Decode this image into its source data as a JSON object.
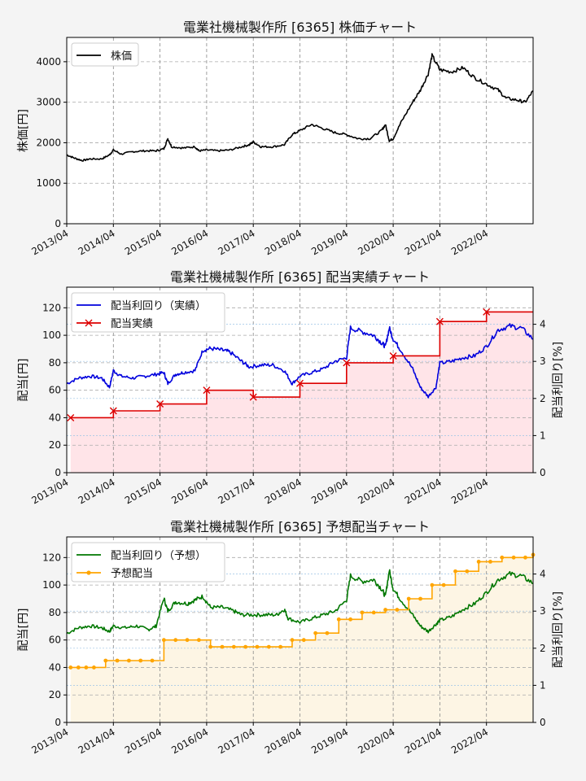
{
  "colors": {
    "price": "#000000",
    "actual_yield": "#0000dd",
    "actual_div": "#dd0000",
    "actual_fill": "#ffe4e8",
    "forecast_yield": "#007700",
    "forecast_div": "#ffa500",
    "forecast_fill": "#fdf5e4",
    "grid": "#999999",
    "background": "#f4f4f4"
  },
  "chart_data": [
    {
      "type": "line",
      "title": "電業社機械製作所 [6365]  株価チャート",
      "ylabel": "株価[円]",
      "ylim": [
        0,
        4600
      ],
      "yticks": [
        0,
        1000,
        2000,
        3000,
        4000
      ],
      "xlim": [
        "2013-04-01",
        "2023-04-01"
      ],
      "xticks": [
        "2013/04",
        "2014/04",
        "2015/04",
        "2016/04",
        "2017/04",
        "2018/04",
        "2019/04",
        "2020/04",
        "2021/04",
        "2022/04"
      ],
      "grid": true,
      "legend": {
        "position": "top-left",
        "entries": [
          "株価"
        ]
      },
      "series": [
        {
          "name": "株価",
          "color": "#000000",
          "points": [
            [
              "2013-04",
              1700
            ],
            [
              "2013-06",
              1620
            ],
            [
              "2013-08",
              1560
            ],
            [
              "2013-10",
              1600
            ],
            [
              "2014-01",
              1600
            ],
            [
              "2014-03",
              1700
            ],
            [
              "2014-04",
              1820
            ],
            [
              "2014-06",
              1720
            ],
            [
              "2014-09",
              1780
            ],
            [
              "2014-12",
              1800
            ],
            [
              "2015-03",
              1800
            ],
            [
              "2015-05",
              1850
            ],
            [
              "2015-06",
              2100
            ],
            [
              "2015-07",
              1900
            ],
            [
              "2015-10",
              1870
            ],
            [
              "2016-01",
              1900
            ],
            [
              "2016-02",
              1800
            ],
            [
              "2016-04",
              1820
            ],
            [
              "2016-07",
              1800
            ],
            [
              "2016-10",
              1820
            ],
            [
              "2017-01",
              1900
            ],
            [
              "2017-03",
              1950
            ],
            [
              "2017-04",
              2020
            ],
            [
              "2017-06",
              1900
            ],
            [
              "2017-09",
              1900
            ],
            [
              "2017-12",
              1950
            ],
            [
              "2018-02",
              2200
            ],
            [
              "2018-04",
              2300
            ],
            [
              "2018-07",
              2450
            ],
            [
              "2018-10",
              2350
            ],
            [
              "2019-01",
              2250
            ],
            [
              "2019-04",
              2200
            ],
            [
              "2019-07",
              2100
            ],
            [
              "2019-10",
              2100
            ],
            [
              "2020-01",
              2300
            ],
            [
              "2020-02",
              2450
            ],
            [
              "2020-03",
              2050
            ],
            [
              "2020-04",
              2100
            ],
            [
              "2020-06",
              2500
            ],
            [
              "2020-09",
              3000
            ],
            [
              "2020-11",
              3300
            ],
            [
              "2021-01",
              3700
            ],
            [
              "2021-02",
              4150
            ],
            [
              "2021-04",
              3800
            ],
            [
              "2021-07",
              3750
            ],
            [
              "2021-10",
              3850
            ],
            [
              "2022-01",
              3600
            ],
            [
              "2022-04",
              3450
            ],
            [
              "2022-07",
              3300
            ],
            [
              "2022-09",
              3100
            ],
            [
              "2022-12",
              3050
            ],
            [
              "2023-02",
              3000
            ],
            [
              "2023-04",
              3280
            ]
          ]
        }
      ]
    },
    {
      "type": "line",
      "title": "電業社機械製作所 [6365]  配当実績チャート",
      "ylabel": "配当[円]",
      "ylabel_right": "配当利回り[%]",
      "ylim": [
        0,
        135
      ],
      "yticks": [
        0,
        20,
        40,
        60,
        80,
        100,
        120
      ],
      "ylim_right": [
        0,
        5.0
      ],
      "yticks_right": [
        0,
        1,
        2,
        3,
        4
      ],
      "xlim": [
        "2013-04-01",
        "2023-04-01"
      ],
      "xticks": [
        "2013/04",
        "2014/04",
        "2015/04",
        "2016/04",
        "2017/04",
        "2018/04",
        "2019/04",
        "2020/04",
        "2021/04",
        "2022/04"
      ],
      "grid": true,
      "legend": {
        "position": "top-left",
        "entries": [
          "配当利回り（実績）",
          "配当実績"
        ]
      },
      "series": [
        {
          "name": "配当利回り（実績）",
          "axis": "right",
          "color": "#0000dd",
          "points": [
            [
              "2013-04",
              2.4
            ],
            [
              "2013-07",
              2.55
            ],
            [
              "2013-10",
              2.6
            ],
            [
              "2014-01",
              2.55
            ],
            [
              "2014-03",
              2.3
            ],
            [
              "2014-04",
              2.75
            ],
            [
              "2014-06",
              2.6
            ],
            [
              "2014-09",
              2.55
            ],
            [
              "2014-12",
              2.6
            ],
            [
              "2015-03",
              2.65
            ],
            [
              "2015-05",
              2.7
            ],
            [
              "2015-06",
              2.4
            ],
            [
              "2015-08",
              2.65
            ],
            [
              "2015-10",
              2.7
            ],
            [
              "2016-01",
              2.75
            ],
            [
              "2016-03",
              3.3
            ],
            [
              "2016-05",
              3.35
            ],
            [
              "2016-08",
              3.3
            ],
            [
              "2016-10",
              3.25
            ],
            [
              "2017-01",
              3.0
            ],
            [
              "2017-03",
              2.85
            ],
            [
              "2017-06",
              2.9
            ],
            [
              "2017-09",
              2.9
            ],
            [
              "2017-12",
              2.75
            ],
            [
              "2018-02",
              2.4
            ],
            [
              "2018-04",
              2.6
            ],
            [
              "2018-07",
              2.7
            ],
            [
              "2018-10",
              2.8
            ],
            [
              "2019-01",
              3.0
            ],
            [
              "2019-04",
              3.1
            ],
            [
              "2019-05",
              3.9
            ],
            [
              "2019-08",
              3.8
            ],
            [
              "2019-11",
              3.7
            ],
            [
              "2020-01",
              3.5
            ],
            [
              "2020-02",
              3.4
            ],
            [
              "2020-03",
              3.9
            ],
            [
              "2020-04",
              3.6
            ],
            [
              "2020-06",
              3.3
            ],
            [
              "2020-09",
              2.8
            ],
            [
              "2020-11",
              2.3
            ],
            [
              "2021-01",
              2.05
            ],
            [
              "2021-03",
              2.3
            ],
            [
              "2021-04",
              2.95
            ],
            [
              "2021-07",
              3.0
            ],
            [
              "2021-10",
              3.1
            ],
            [
              "2022-01",
              3.15
            ],
            [
              "2022-04",
              3.4
            ],
            [
              "2022-07",
              3.85
            ],
            [
              "2022-10",
              3.95
            ],
            [
              "2023-01",
              3.9
            ],
            [
              "2023-04",
              3.6
            ]
          ]
        },
        {
          "name": "配当実績",
          "axis": "left",
          "color": "#dd0000",
          "step": true,
          "markers": [
            [
              "2013-05",
              40
            ],
            [
              "2014-04",
              45
            ],
            [
              "2015-04",
              50
            ],
            [
              "2016-04",
              60
            ],
            [
              "2017-04",
              55
            ],
            [
              "2018-04",
              65
            ],
            [
              "2019-04",
              80
            ],
            [
              "2020-04",
              85
            ],
            [
              "2021-04",
              110
            ],
            [
              "2022-04",
              117
            ]
          ],
          "end": "2023-04"
        }
      ]
    },
    {
      "type": "line",
      "title": "電業社機械製作所 [6365]  予想配当チャート",
      "ylabel": "配当[円]",
      "ylabel_right": "配当利回り[%]",
      "ylim": [
        0,
        135
      ],
      "yticks": [
        0,
        20,
        40,
        60,
        80,
        100,
        120
      ],
      "ylim_right": [
        0,
        5.0
      ],
      "yticks_right": [
        0,
        1,
        2,
        3,
        4
      ],
      "xlim": [
        "2013-04-01",
        "2023-04-01"
      ],
      "xticks": [
        "2013/04",
        "2014/04",
        "2015/04",
        "2016/04",
        "2017/04",
        "2018/04",
        "2019/04",
        "2020/04",
        "2021/04",
        "2022/04"
      ],
      "grid": true,
      "legend": {
        "position": "top-left",
        "entries": [
          "配当利回り（予想）",
          "予想配当"
        ]
      },
      "series": [
        {
          "name": "配当利回り（予想）",
          "axis": "right",
          "color": "#007700",
          "points": [
            [
              "2013-04",
              2.4
            ],
            [
              "2013-07",
              2.55
            ],
            [
              "2013-10",
              2.6
            ],
            [
              "2014-01",
              2.55
            ],
            [
              "2014-03",
              2.45
            ],
            [
              "2014-04",
              2.6
            ],
            [
              "2014-07",
              2.55
            ],
            [
              "2014-10",
              2.6
            ],
            [
              "2015-01",
              2.5
            ],
            [
              "2015-03",
              2.6
            ],
            [
              "2015-05",
              3.35
            ],
            [
              "2015-06",
              3.0
            ],
            [
              "2015-08",
              3.25
            ],
            [
              "2015-11",
              3.2
            ],
            [
              "2016-01",
              3.3
            ],
            [
              "2016-03",
              3.4
            ],
            [
              "2016-05",
              3.1
            ],
            [
              "2016-08",
              3.1
            ],
            [
              "2016-11",
              3.0
            ],
            [
              "2017-01",
              2.9
            ],
            [
              "2017-04",
              2.9
            ],
            [
              "2017-07",
              2.9
            ],
            [
              "2017-10",
              2.9
            ],
            [
              "2017-12",
              3.05
            ],
            [
              "2018-01",
              2.8
            ],
            [
              "2018-04",
              2.7
            ],
            [
              "2018-07",
              2.8
            ],
            [
              "2018-10",
              2.9
            ],
            [
              "2019-01",
              3.0
            ],
            [
              "2019-04",
              3.3
            ],
            [
              "2019-05",
              3.95
            ],
            [
              "2019-08",
              3.8
            ],
            [
              "2019-11",
              3.85
            ],
            [
              "2020-01",
              3.6
            ],
            [
              "2020-02",
              3.4
            ],
            [
              "2020-03",
              4.1
            ],
            [
              "2020-04",
              3.6
            ],
            [
              "2020-06",
              3.3
            ],
            [
              "2020-09",
              2.9
            ],
            [
              "2020-11",
              2.6
            ],
            [
              "2021-01",
              2.45
            ],
            [
              "2021-03",
              2.65
            ],
            [
              "2021-04",
              2.75
            ],
            [
              "2021-07",
              2.85
            ],
            [
              "2021-10",
              3.05
            ],
            [
              "2022-01",
              3.2
            ],
            [
              "2022-04",
              3.5
            ],
            [
              "2022-07",
              3.85
            ],
            [
              "2022-10",
              4.0
            ],
            [
              "2023-01",
              3.95
            ],
            [
              "2023-04",
              3.75
            ]
          ]
        },
        {
          "name": "予想配当",
          "axis": "left",
          "color": "#ffa500",
          "step": true,
          "markers": [
            [
              "2013-05",
              40
            ],
            [
              "2013-07",
              40
            ],
            [
              "2013-09",
              40
            ],
            [
              "2013-11",
              40
            ],
            [
              "2014-02",
              45
            ],
            [
              "2014-05",
              45
            ],
            [
              "2014-08",
              45
            ],
            [
              "2014-11",
              45
            ],
            [
              "2015-02",
              45
            ],
            [
              "2015-05",
              60
            ],
            [
              "2015-08",
              60
            ],
            [
              "2015-11",
              60
            ],
            [
              "2016-02",
              60
            ],
            [
              "2016-05",
              55
            ],
            [
              "2016-08",
              55
            ],
            [
              "2016-11",
              55
            ],
            [
              "2017-02",
              55
            ],
            [
              "2017-05",
              55
            ],
            [
              "2017-08",
              55
            ],
            [
              "2017-11",
              55
            ],
            [
              "2018-02",
              60
            ],
            [
              "2018-05",
              60
            ],
            [
              "2018-08",
              65
            ],
            [
              "2018-11",
              65
            ],
            [
              "2019-02",
              75
            ],
            [
              "2019-05",
              75
            ],
            [
              "2019-08",
              80
            ],
            [
              "2019-11",
              80
            ],
            [
              "2020-02",
              82
            ],
            [
              "2020-05",
              82
            ],
            [
              "2020-08",
              90
            ],
            [
              "2020-11",
              90
            ],
            [
              "2021-02",
              100
            ],
            [
              "2021-05",
              100
            ],
            [
              "2021-08",
              110
            ],
            [
              "2021-11",
              110
            ],
            [
              "2022-02",
              117
            ],
            [
              "2022-05",
              117
            ],
            [
              "2022-08",
              120
            ],
            [
              "2022-11",
              120
            ],
            [
              "2023-02",
              120
            ],
            [
              "2023-04",
              122
            ]
          ]
        }
      ]
    }
  ]
}
